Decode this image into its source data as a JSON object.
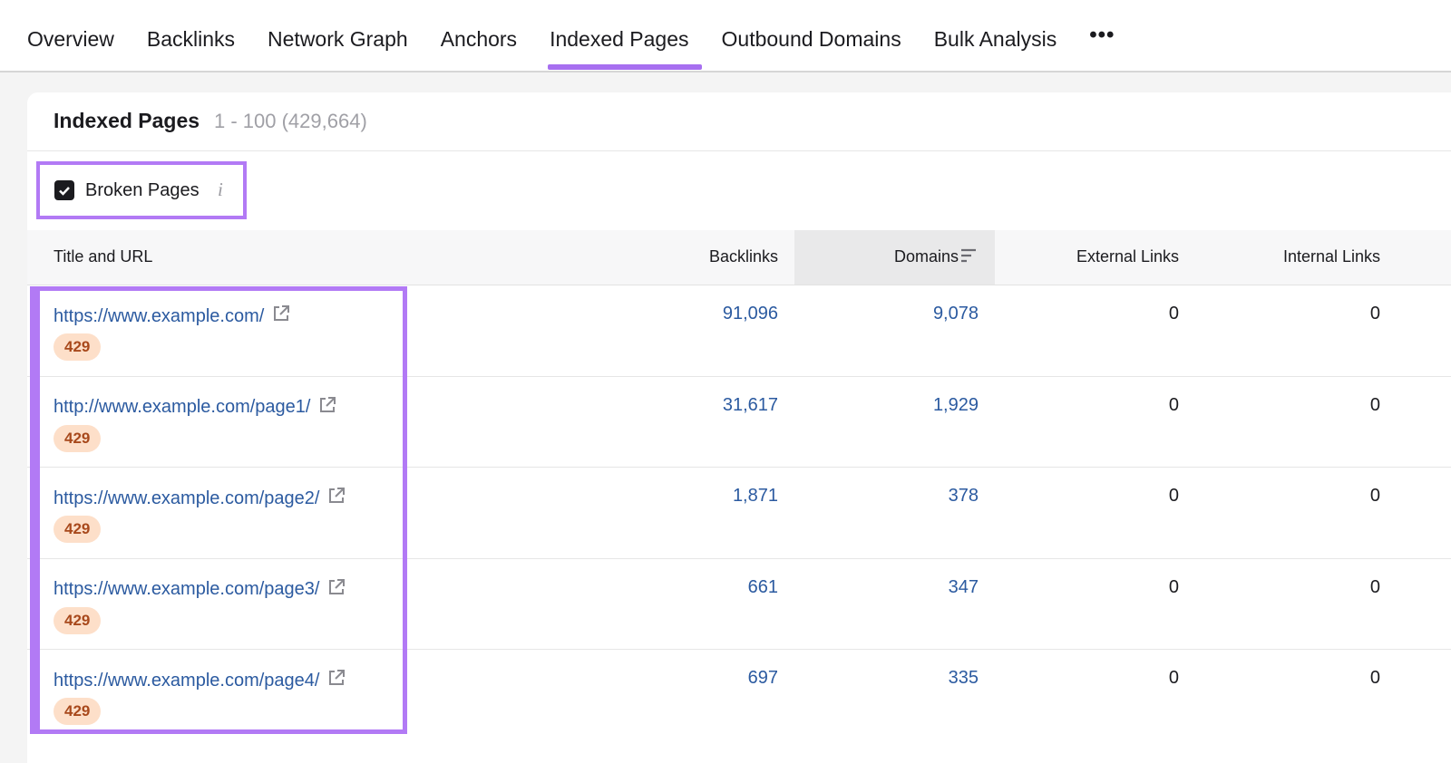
{
  "tabs": [
    "Overview",
    "Backlinks",
    "Network Graph",
    "Anchors",
    "Indexed Pages",
    "Outbound Domains",
    "Bulk Analysis"
  ],
  "panel": {
    "title": "Indexed Pages",
    "range": "1 - 100 (429,664)"
  },
  "filter": {
    "label": "Broken Pages"
  },
  "table": {
    "columns": [
      "Title and URL",
      "Backlinks",
      "Domains",
      "External Links",
      "Internal Links"
    ],
    "rows": [
      {
        "url": "https://www.example.com/",
        "status": "429",
        "backlinks": "91,096",
        "domains": "9,078",
        "external_links": "0",
        "internal_links": "0"
      },
      {
        "url": "http://www.example.com/page1/",
        "status": "429",
        "backlinks": "31,617",
        "domains": "1,929",
        "external_links": "0",
        "internal_links": "0"
      },
      {
        "url": "https://www.example.com/page2/",
        "status": "429",
        "backlinks": "1,871",
        "domains": "378",
        "external_links": "0",
        "internal_links": "0"
      },
      {
        "url": "https://www.example.com/page3/",
        "status": "429",
        "backlinks": "661",
        "domains": "347",
        "external_links": "0",
        "internal_links": "0"
      },
      {
        "url": "https://www.example.com/page4/",
        "status": "429",
        "backlinks": "697",
        "domains": "335",
        "external_links": "0",
        "internal_links": "0"
      }
    ]
  }
}
